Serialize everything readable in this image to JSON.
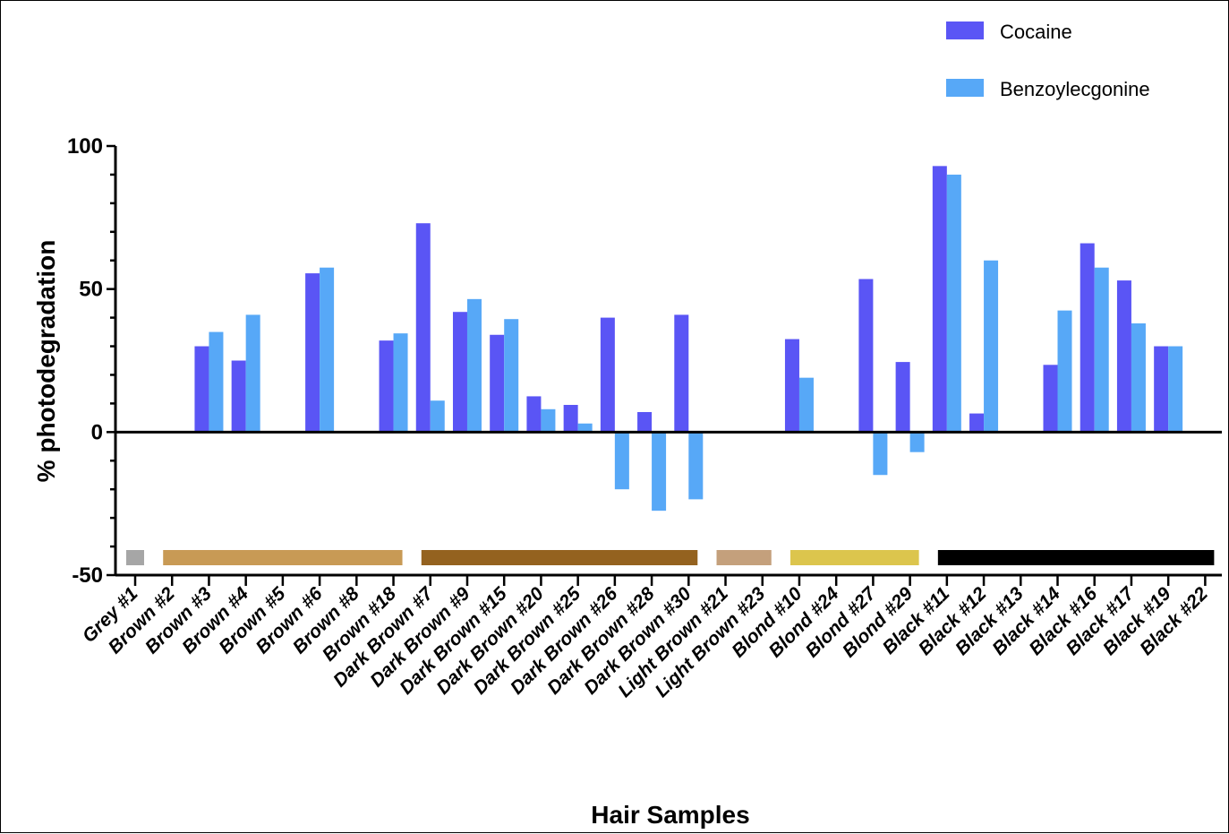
{
  "chart_data": {
    "type": "bar",
    "ylabel": "% photodegradation",
    "xlabel": "Hair Samples",
    "ylim": [
      -50,
      100
    ],
    "yticks": [
      -50,
      0,
      50,
      100
    ],
    "legend_position": "top-right",
    "grid": false,
    "categories": [
      "Grey #1",
      "Brown #2",
      "Brown #3",
      "Brown #4",
      "Brown #5",
      "Brown #6",
      "Brown #8",
      "Brown #18",
      "Dark Brown #7",
      "Dark Brown #9",
      "Dark Brown #15",
      "Dark Brown #20",
      "Dark Brown #25",
      "Dark Brown #26",
      "Dark Brown #28",
      "Dark Brown #30",
      "Light Brown #21",
      "Light Brown #23",
      "Blond #10",
      "Blond #24",
      "Blond #27",
      "Blond #29",
      "Black #11",
      "Black #12",
      "Black #13",
      "Black #14",
      "Black #16",
      "Black #17",
      "Black #19",
      "Black #22"
    ],
    "series": [
      {
        "name": "Cocaine",
        "color": "#5a55f5",
        "values": [
          0,
          0,
          30,
          25,
          0,
          55.5,
          0,
          32,
          73,
          42,
          34,
          12.5,
          9.5,
          40,
          7,
          41,
          0,
          0,
          32.5,
          0,
          53.5,
          24.5,
          93,
          6.5,
          0,
          23.5,
          66,
          53,
          30,
          0
        ]
      },
      {
        "name": "Benzoylecgonine",
        "color": "#57a8f7",
        "values": [
          0,
          0,
          35,
          41,
          0,
          57.5,
          0,
          34.5,
          11,
          46.5,
          39.5,
          8,
          3,
          -20,
          -27.5,
          -23.5,
          0,
          0,
          19,
          0,
          -15,
          -7,
          90,
          60,
          0,
          42.5,
          57.5,
          38,
          30,
          0
        ]
      }
    ],
    "color_groups": [
      {
        "name": "Grey",
        "color": "#a6a6a6",
        "from": 0,
        "to": 0
      },
      {
        "name": "Brown",
        "color": "#c89a55",
        "from": 1,
        "to": 7
      },
      {
        "name": "Dark Brown",
        "color": "#94621f",
        "from": 8,
        "to": 15
      },
      {
        "name": "Light Brown",
        "color": "#c4a07c",
        "from": 16,
        "to": 17
      },
      {
        "name": "Blond",
        "color": "#dcc54d",
        "from": 18,
        "to": 21
      },
      {
        "name": "Black",
        "color": "#000000",
        "from": 22,
        "to": 29
      }
    ]
  }
}
